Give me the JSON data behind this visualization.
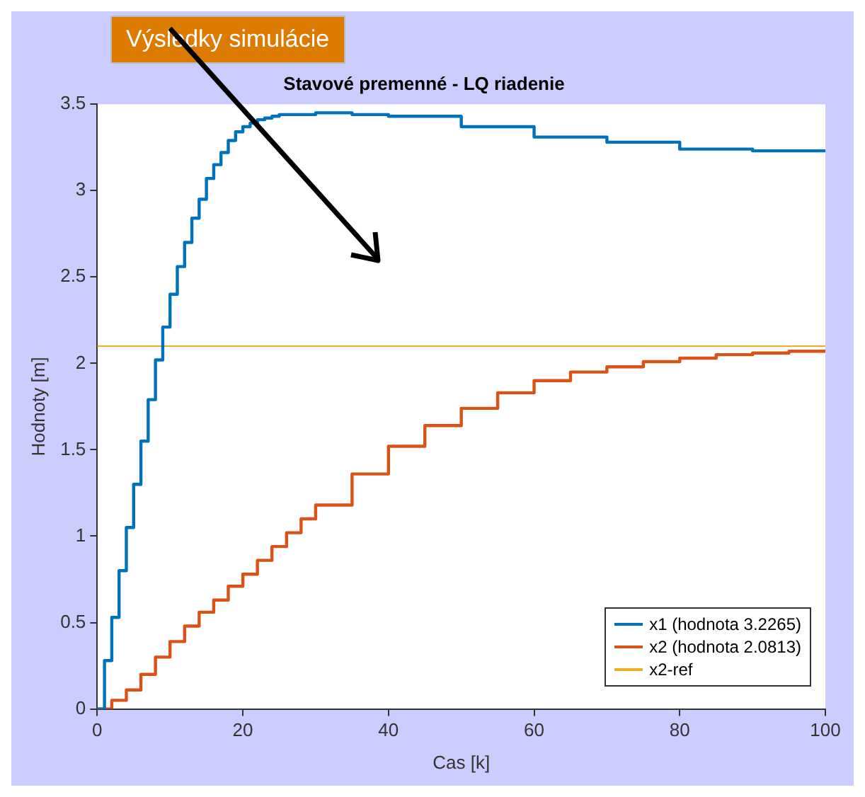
{
  "chart_data": {
    "type": "step",
    "title": "Stavové premenné - LQ riadenie",
    "xlabel": "Cas [k]",
    "ylabel": "Hodnoty [m]",
    "annotations": [
      "Výsledky simulácie"
    ],
    "xlim": [
      0,
      100
    ],
    "xticks": [
      0,
      20,
      40,
      60,
      80,
      100
    ],
    "ylim": [
      0,
      3.5
    ],
    "yticks": [
      0,
      0.5,
      1,
      1.5,
      2,
      2.5,
      3,
      3.5
    ],
    "grid": false,
    "legend": "bottom right",
    "marker": "none",
    "line_style": "solid",
    "series": [
      {
        "name": "x1 (hodnota 3.2265)",
        "color": "#0072bd",
        "x": [
          0,
          1,
          2,
          3,
          4,
          5,
          6,
          7,
          8,
          9,
          10,
          11,
          12,
          13,
          14,
          15,
          16,
          17,
          18,
          19,
          20,
          21,
          22,
          23,
          24,
          25,
          30,
          35,
          40,
          50,
          60,
          70,
          80,
          90,
          100
        ],
        "values": [
          0,
          0.28,
          0.53,
          0.8,
          1.05,
          1.3,
          1.55,
          1.79,
          2.02,
          2.21,
          2.4,
          2.56,
          2.7,
          2.84,
          2.95,
          3.07,
          3.15,
          3.22,
          3.29,
          3.34,
          3.37,
          3.39,
          3.41,
          3.42,
          3.43,
          3.44,
          3.45,
          3.44,
          3.43,
          3.37,
          3.31,
          3.28,
          3.24,
          3.23,
          3.23
        ]
      },
      {
        "name": "x2 (hodnota 2.0813)",
        "color": "#d95319",
        "x": [
          0,
          2,
          4,
          6,
          8,
          10,
          12,
          14,
          16,
          18,
          20,
          22,
          24,
          26,
          28,
          30,
          35,
          40,
          45,
          50,
          55,
          60,
          65,
          70,
          75,
          80,
          85,
          90,
          95,
          100
        ],
        "values": [
          0,
          0.05,
          0.11,
          0.2,
          0.3,
          0.39,
          0.48,
          0.56,
          0.63,
          0.71,
          0.78,
          0.86,
          0.94,
          1.02,
          1.1,
          1.18,
          1.36,
          1.52,
          1.64,
          1.74,
          1.83,
          1.9,
          1.95,
          1.98,
          2.01,
          2.03,
          2.05,
          2.06,
          2.07,
          2.08
        ]
      },
      {
        "name": "x2-ref",
        "type": "line",
        "color": "#edb120",
        "x": [
          0,
          100
        ],
        "values": [
          2.1,
          2.1
        ]
      }
    ]
  }
}
